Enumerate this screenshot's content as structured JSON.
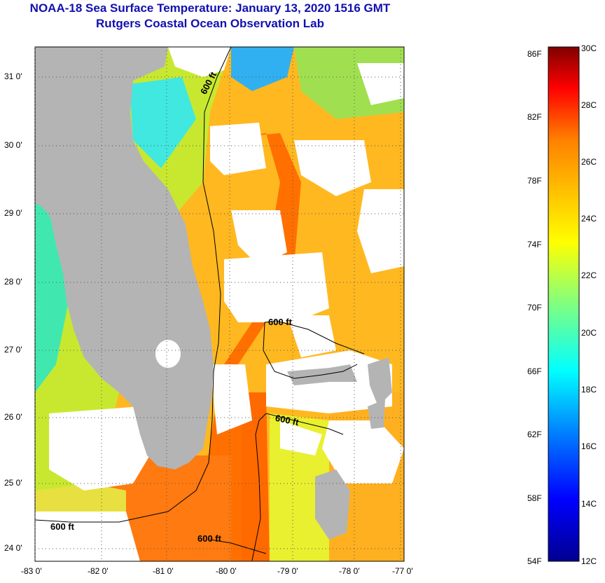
{
  "title": "NOAA-18 Sea Surface Temperature:  January 13, 2020 1516 GMT",
  "subtitle": "Rutgers Coastal Ocean Observation Lab",
  "lat_labels": [
    "31 0'",
    "30 0'",
    "29 0'",
    "28 0'",
    "27 0'",
    "26 0'",
    "25 0'",
    "24 0'"
  ],
  "lon_labels": [
    "-83 0'",
    "-82 0'",
    "-81 0'",
    "-80 0'",
    "-79 0'",
    "-78 0'",
    "-77 0'"
  ],
  "contour_labels": [
    "600 ft",
    "600 ft",
    "600 ft",
    "600 ft",
    "600 ft"
  ],
  "colorbar": {
    "fahrenheit": [
      "86F",
      "82F",
      "78F",
      "74F",
      "70F",
      "66F",
      "62F",
      "58F",
      "54F"
    ],
    "celsius": [
      "30C",
      "28C",
      "26C",
      "24C",
      "22C",
      "20C",
      "18C",
      "16C",
      "14C",
      "12C"
    ],
    "colors": [
      "#000090",
      "#0000ff",
      "#0080ff",
      "#00ffff",
      "#80ff80",
      "#ffff00",
      "#ffc000",
      "#ff8000",
      "#ff0000",
      "#800000"
    ]
  },
  "colors": {
    "land": "#b4b4b4",
    "cloud": "#ffffff",
    "title": "#1010b0"
  }
}
